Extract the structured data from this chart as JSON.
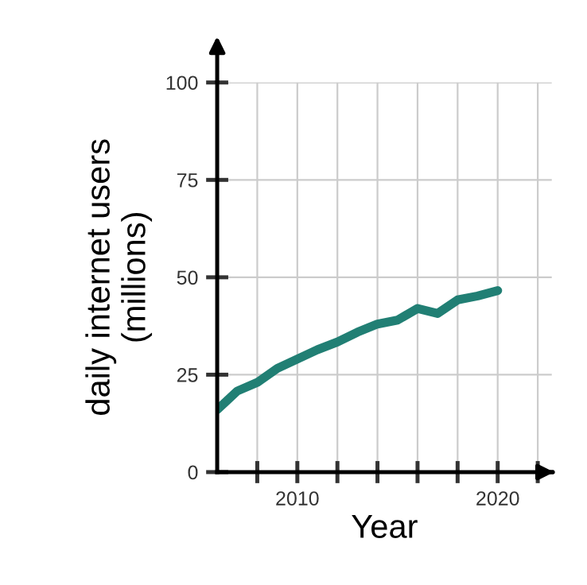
{
  "chart_data": {
    "type": "line",
    "xlabel": "Year",
    "ylabel": "daily internet users\n(millions)",
    "x": [
      2006,
      2007,
      2008,
      2009,
      2010,
      2011,
      2012,
      2013,
      2014,
      2015,
      2016,
      2017,
      2018,
      2019,
      2020
    ],
    "series": [
      {
        "color": "#217f74",
        "values": [
          16,
          20.8,
          23,
          26.6,
          29,
          31.4,
          33.4,
          35.9,
          38,
          39,
          42,
          40.7,
          44.2,
          45.2,
          46.6
        ]
      }
    ],
    "xlim": [
      2006,
      2022.7
    ],
    "ylim": [
      0,
      100
    ],
    "xticks": [
      {
        "value": 2008,
        "label": null
      },
      2010,
      {
        "value": 2012,
        "label": null
      },
      {
        "value": 2014,
        "label": null
      },
      {
        "value": 2016,
        "label": null
      },
      {
        "value": 2018,
        "label": null
      },
      2020,
      {
        "value": 2022,
        "label": null
      }
    ],
    "yticks": [
      0,
      25,
      50,
      75,
      100
    ],
    "grid": true,
    "marker": "none",
    "line_style": "solid",
    "legend": false
  }
}
